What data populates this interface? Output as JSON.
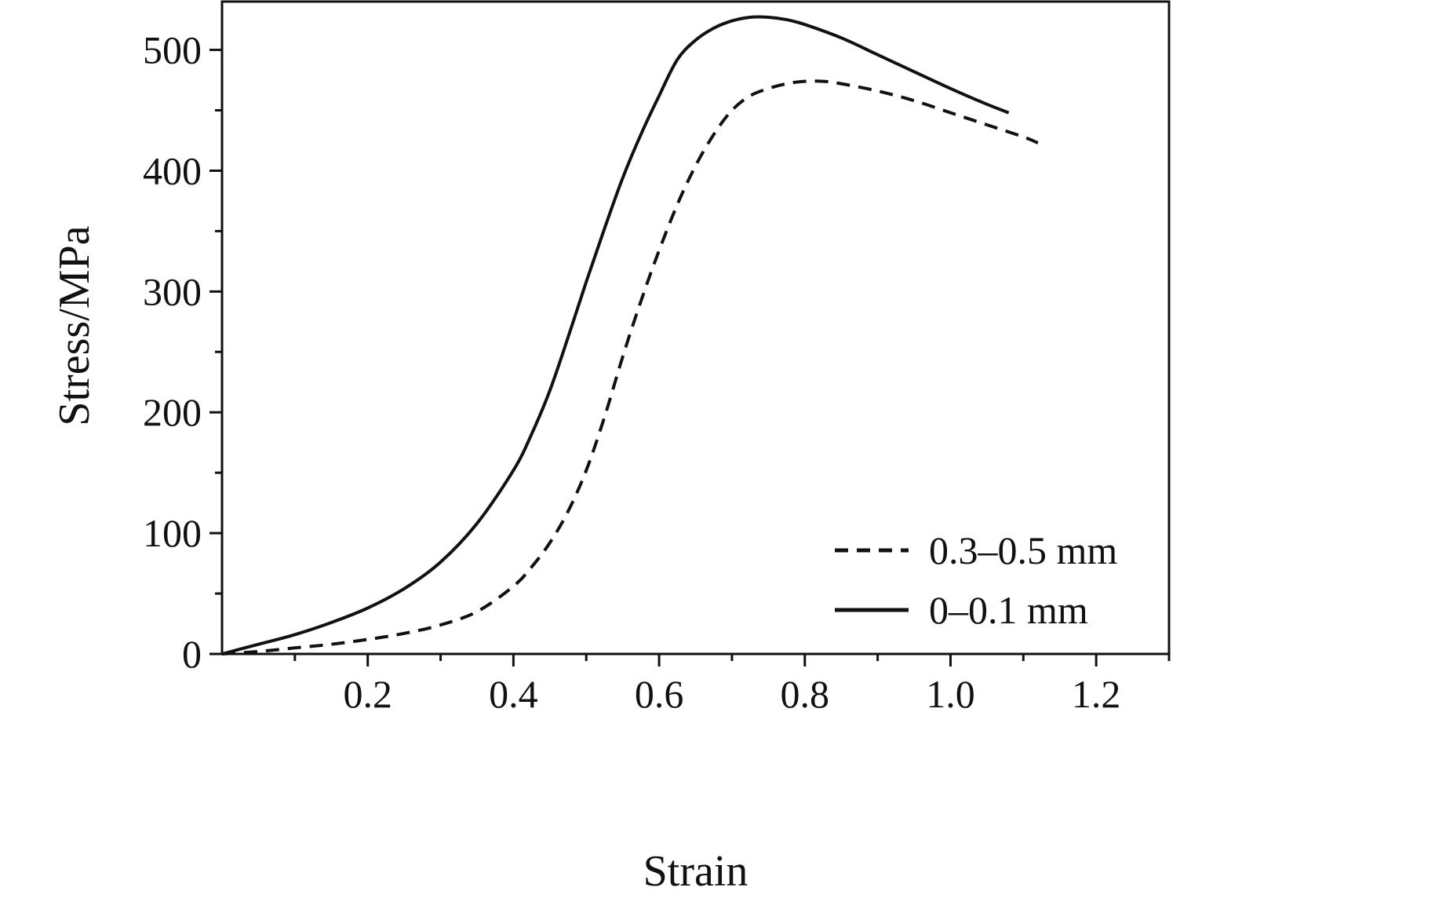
{
  "chart_data": {
    "type": "line",
    "title": "",
    "xlabel": "Strain",
    "ylabel": "Stress/MPa",
    "xlim": [
      0,
      1.3
    ],
    "ylim": [
      0,
      540
    ],
    "x_ticks": [
      0.2,
      0.4,
      0.6,
      0.8,
      1.0,
      1.2
    ],
    "x_tick_labels": [
      "0.2",
      "0.4",
      "0.6",
      "0.8",
      "1.0",
      "1.2"
    ],
    "y_ticks": [
      0,
      100,
      200,
      300,
      400,
      500
    ],
    "y_tick_labels": [
      "0",
      "100",
      "200",
      "300",
      "400",
      "500"
    ],
    "grid": false,
    "frame": true,
    "ink_color": "#111111",
    "legend_position": "lower-right-inside",
    "series": [
      {
        "name": "0.3–0.5 mm",
        "style": "dashed",
        "color": "#111111",
        "x": [
          0,
          0.05,
          0.1,
          0.15,
          0.2,
          0.25,
          0.3,
          0.35,
          0.4,
          0.425,
          0.45,
          0.475,
          0.5,
          0.525,
          0.55,
          0.575,
          0.6,
          0.625,
          0.65,
          0.675,
          0.7,
          0.725,
          0.75,
          0.775,
          0.8,
          0.825,
          0.85,
          0.9,
          0.95,
          1.0,
          1.05,
          1.1,
          1.12
        ],
        "y": [
          0,
          2,
          5,
          8,
          12,
          17,
          24,
          35,
          56,
          72,
          92,
          118,
          152,
          196,
          246,
          292,
          334,
          372,
          404,
          430,
          450,
          462,
          468,
          472,
          474,
          474,
          472,
          466,
          458,
          448,
          438,
          428,
          423
        ]
      },
      {
        "name": "0–0.1 mm",
        "style": "solid",
        "color": "#111111",
        "x": [
          0,
          0.05,
          0.1,
          0.15,
          0.2,
          0.25,
          0.3,
          0.35,
          0.4,
          0.425,
          0.45,
          0.475,
          0.5,
          0.525,
          0.55,
          0.575,
          0.6,
          0.625,
          0.65,
          0.675,
          0.7,
          0.725,
          0.75,
          0.775,
          0.8,
          0.85,
          0.9,
          0.95,
          1.0,
          1.05,
          1.08
        ],
        "y": [
          0,
          8,
          16,
          26,
          38,
          54,
          76,
          108,
          152,
          182,
          218,
          262,
          308,
          352,
          394,
          430,
          462,
          492,
          508,
          518,
          524,
          527,
          527,
          525,
          521,
          510,
          496,
          482,
          468,
          455,
          448
        ]
      }
    ]
  }
}
